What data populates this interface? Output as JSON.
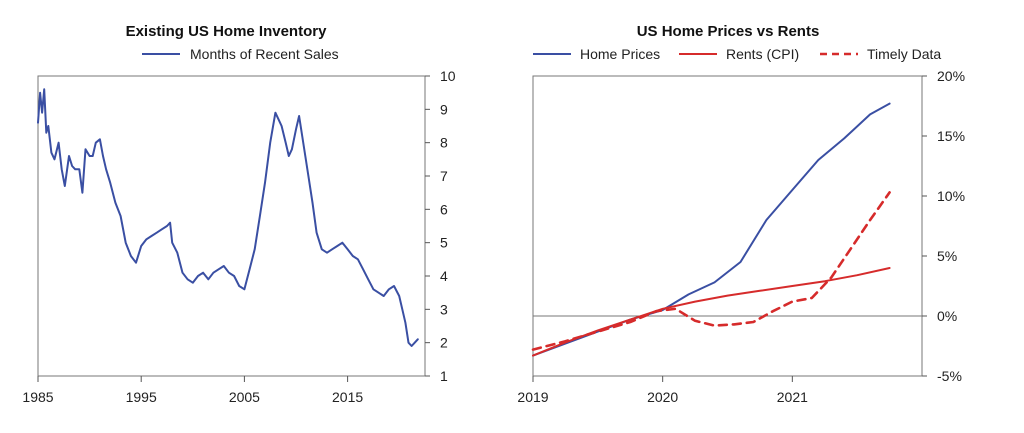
{
  "chart_data": [
    {
      "type": "line",
      "title": "Existing US Home Inventory",
      "legend": [
        "Months of Recent Sales"
      ],
      "xlabel": "",
      "ylabel": "",
      "xlim": [
        1985,
        2022.5
      ],
      "ylim": [
        1,
        10
      ],
      "x_ticks": [
        1985,
        1995,
        2005,
        2015
      ],
      "x_tick_labels": [
        "1985",
        "1995",
        "2005",
        "2015"
      ],
      "y_ticks": [
        1,
        2,
        3,
        4,
        5,
        6,
        7,
        8,
        9,
        10
      ],
      "y_tick_labels": [
        "1",
        "2",
        "3",
        "4",
        "5",
        "6",
        "7",
        "8",
        "9",
        "10"
      ],
      "y_axis_side": "right",
      "series": [
        {
          "name": "Months of Recent Sales",
          "color": "#3a4fa3",
          "x": [
            1985.0,
            1985.2,
            1985.4,
            1985.6,
            1985.8,
            1986.0,
            1986.3,
            1986.6,
            1987.0,
            1987.3,
            1987.6,
            1988.0,
            1988.3,
            1988.6,
            1989.0,
            1989.3,
            1989.6,
            1990.0,
            1990.3,
            1990.6,
            1991.0,
            1991.3,
            1991.6,
            1992.0,
            1992.5,
            1993.0,
            1993.5,
            1994.0,
            1994.5,
            1995.0,
            1995.5,
            1996.0,
            1996.5,
            1997.0,
            1997.5,
            1997.8,
            1998.0,
            1998.5,
            1999.0,
            1999.5,
            2000.0,
            2000.5,
            2001.0,
            2001.5,
            2002.0,
            2002.5,
            2003.0,
            2003.5,
            2004.0,
            2004.5,
            2005.0,
            2005.5,
            2006.0,
            2006.5,
            2007.0,
            2007.5,
            2008.0,
            2008.3,
            2008.6,
            2009.0,
            2009.3,
            2009.6,
            2010.0,
            2010.3,
            2010.6,
            2010.9,
            2011.2,
            2011.6,
            2012.0,
            2012.5,
            2013.0,
            2013.5,
            2014.0,
            2014.5,
            2015.0,
            2015.5,
            2016.0,
            2016.5,
            2017.0,
            2017.5,
            2018.0,
            2018.5,
            2019.0,
            2019.5,
            2020.0,
            2020.3,
            2020.6,
            2020.9,
            2021.2,
            2021.5,
            2021.8
          ],
          "values": [
            8.6,
            9.5,
            8.9,
            9.6,
            8.3,
            8.5,
            7.7,
            7.5,
            8.0,
            7.2,
            6.7,
            7.6,
            7.3,
            7.2,
            7.2,
            6.5,
            7.8,
            7.6,
            7.6,
            8.0,
            8.1,
            7.6,
            7.2,
            6.8,
            6.2,
            5.8,
            5.0,
            4.6,
            4.4,
            4.9,
            5.1,
            5.2,
            5.3,
            5.4,
            5.5,
            5.6,
            5.0,
            4.7,
            4.1,
            3.9,
            3.8,
            4.0,
            4.1,
            3.9,
            4.1,
            4.2,
            4.3,
            4.1,
            4.0,
            3.7,
            3.6,
            4.2,
            4.8,
            5.8,
            6.8,
            8.0,
            8.9,
            8.7,
            8.5,
            8.0,
            7.6,
            7.8,
            8.4,
            8.8,
            8.2,
            7.6,
            7.0,
            6.2,
            5.3,
            4.8,
            4.7,
            4.8,
            4.9,
            5.0,
            4.8,
            4.6,
            4.5,
            4.2,
            3.9,
            3.6,
            3.5,
            3.4,
            3.6,
            3.7,
            3.4,
            3.0,
            2.6,
            2.0,
            1.9,
            2.0,
            2.1
          ]
        }
      ]
    },
    {
      "type": "line",
      "title": "US Home Prices vs Rents",
      "legend": [
        "Home Prices",
        "Rents (CPI)",
        "Timely Data"
      ],
      "xlabel": "",
      "ylabel": "",
      "xlim": [
        2019,
        2022
      ],
      "ylim": [
        -5,
        20
      ],
      "x_ticks": [
        2019,
        2020,
        2021
      ],
      "x_tick_labels": [
        "2019",
        "2020",
        "2021"
      ],
      "y_ticks": [
        -5,
        0,
        5,
        10,
        15,
        20
      ],
      "y_tick_labels": [
        "-5%",
        "0%",
        "5%",
        "10%",
        "15%",
        "20%"
      ],
      "y_axis_side": "right",
      "zero_line": true,
      "series": [
        {
          "name": "Home Prices",
          "color": "#3a4fa3",
          "style": "solid",
          "x": [
            2019.0,
            2019.25,
            2019.5,
            2019.75,
            2020.0,
            2020.2,
            2020.4,
            2020.6,
            2020.8,
            2021.0,
            2021.2,
            2021.4,
            2021.6,
            2021.75
          ],
          "values": [
            -3.3,
            -2.3,
            -1.3,
            -0.3,
            0.5,
            1.8,
            2.8,
            4.5,
            8.0,
            10.5,
            13.0,
            14.8,
            16.8,
            17.7
          ]
        },
        {
          "name": "Rents (CPI)",
          "color": "#d62b2b",
          "style": "solid",
          "x": [
            2019.0,
            2019.25,
            2019.5,
            2019.75,
            2020.0,
            2020.25,
            2020.5,
            2020.75,
            2021.0,
            2021.25,
            2021.5,
            2021.75
          ],
          "values": [
            -3.3,
            -2.2,
            -1.2,
            -0.3,
            0.6,
            1.2,
            1.7,
            2.1,
            2.5,
            2.9,
            3.4,
            4.0
          ]
        },
        {
          "name": "Timely Data",
          "color": "#d62b2b",
          "style": "dashed",
          "x": [
            2019.0,
            2019.25,
            2019.5,
            2019.75,
            2019.95,
            2020.1,
            2020.25,
            2020.4,
            2020.55,
            2020.7,
            2020.85,
            2021.0,
            2021.15,
            2021.3,
            2021.45,
            2021.6,
            2021.75
          ],
          "values": [
            -2.8,
            -2.1,
            -1.3,
            -0.5,
            0.4,
            0.6,
            -0.4,
            -0.8,
            -0.7,
            -0.5,
            0.4,
            1.2,
            1.5,
            3.2,
            5.6,
            8.0,
            10.3
          ]
        }
      ]
    }
  ]
}
